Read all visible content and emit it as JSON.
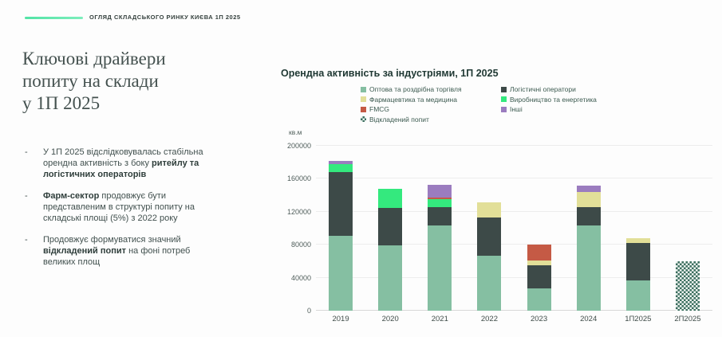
{
  "header": {
    "kicker": "ОГЛЯД СКЛАДСЬКОГО РИНКУ КИЄВА 1П 2025"
  },
  "sidebar": {
    "title": "Ключові драйвери\nпопиту на склади\nу 1П 2025",
    "bullets": [
      {
        "segments": [
          {
            "text": "У 1П 2025 відслідковувалась стабільна орендна активність з боку ",
            "bold": false
          },
          {
            "text": "ритейлу та логістичних операторів",
            "bold": true
          }
        ]
      },
      {
        "segments": [
          {
            "text": "Фарм-сектор",
            "bold": true
          },
          {
            "text": " продовжує бути представленим в структурі попиту на складські площі (5%) з 2022 року",
            "bold": false
          }
        ]
      },
      {
        "segments": [
          {
            "text": "Продовжує формуватися значний ",
            "bold": false
          },
          {
            "text": "відкладений попит",
            "bold": true
          },
          {
            "text": " на фоні потреб великих площ",
            "bold": false
          }
        ]
      }
    ],
    "bullet_marker": "-"
  },
  "chart_data": {
    "type": "bar",
    "stacked": true,
    "title": "Орендна активність за індустріями, 1П 2025",
    "ylabel": "кв.м",
    "xlabel": "",
    "ylim": [
      0,
      200000
    ],
    "yticks": [
      0,
      40000,
      80000,
      120000,
      160000,
      200000
    ],
    "grid": true,
    "legend_position": "top",
    "legend_columns": [
      [
        0,
        2,
        4,
        6
      ],
      [
        1,
        3,
        5
      ]
    ],
    "categories": [
      "2019",
      "2020",
      "2021",
      "2022",
      "2023",
      "2024",
      "1П2025",
      "2П2025"
    ],
    "series": [
      {
        "name": "Оптова та роздрібна торгівля",
        "color": "#85bfa2",
        "pattern": "solid",
        "values": [
          91000,
          79000,
          103000,
          67000,
          27000,
          103000,
          37000,
          0
        ]
      },
      {
        "name": "Логістичні оператори",
        "color": "#3d4a48",
        "pattern": "solid",
        "values": [
          77000,
          46000,
          23000,
          46000,
          28000,
          23000,
          45000,
          0
        ]
      },
      {
        "name": "Фармацевтика та медицина",
        "color": "#e2df98",
        "pattern": "solid",
        "values": [
          0,
          0,
          0,
          18000,
          6000,
          18000,
          6000,
          0
        ]
      },
      {
        "name": "Виробництво та енергетика",
        "color": "#34e97e",
        "pattern": "solid",
        "values": [
          10000,
          23000,
          9000,
          0,
          0,
          0,
          0,
          0
        ]
      },
      {
        "name": "FMCG",
        "color": "#c55a45",
        "pattern": "solid",
        "values": [
          0,
          0,
          2000,
          0,
          19000,
          0,
          0,
          0
        ]
      },
      {
        "name": "Інші",
        "color": "#9b7cbf",
        "pattern": "solid",
        "values": [
          4000,
          0,
          16000,
          0,
          0,
          8000,
          0,
          0
        ]
      },
      {
        "name": "Відкладений попит",
        "color": "#3c6f5f",
        "pattern": "checker",
        "values": [
          0,
          0,
          0,
          0,
          0,
          0,
          0,
          60000
        ]
      }
    ]
  }
}
